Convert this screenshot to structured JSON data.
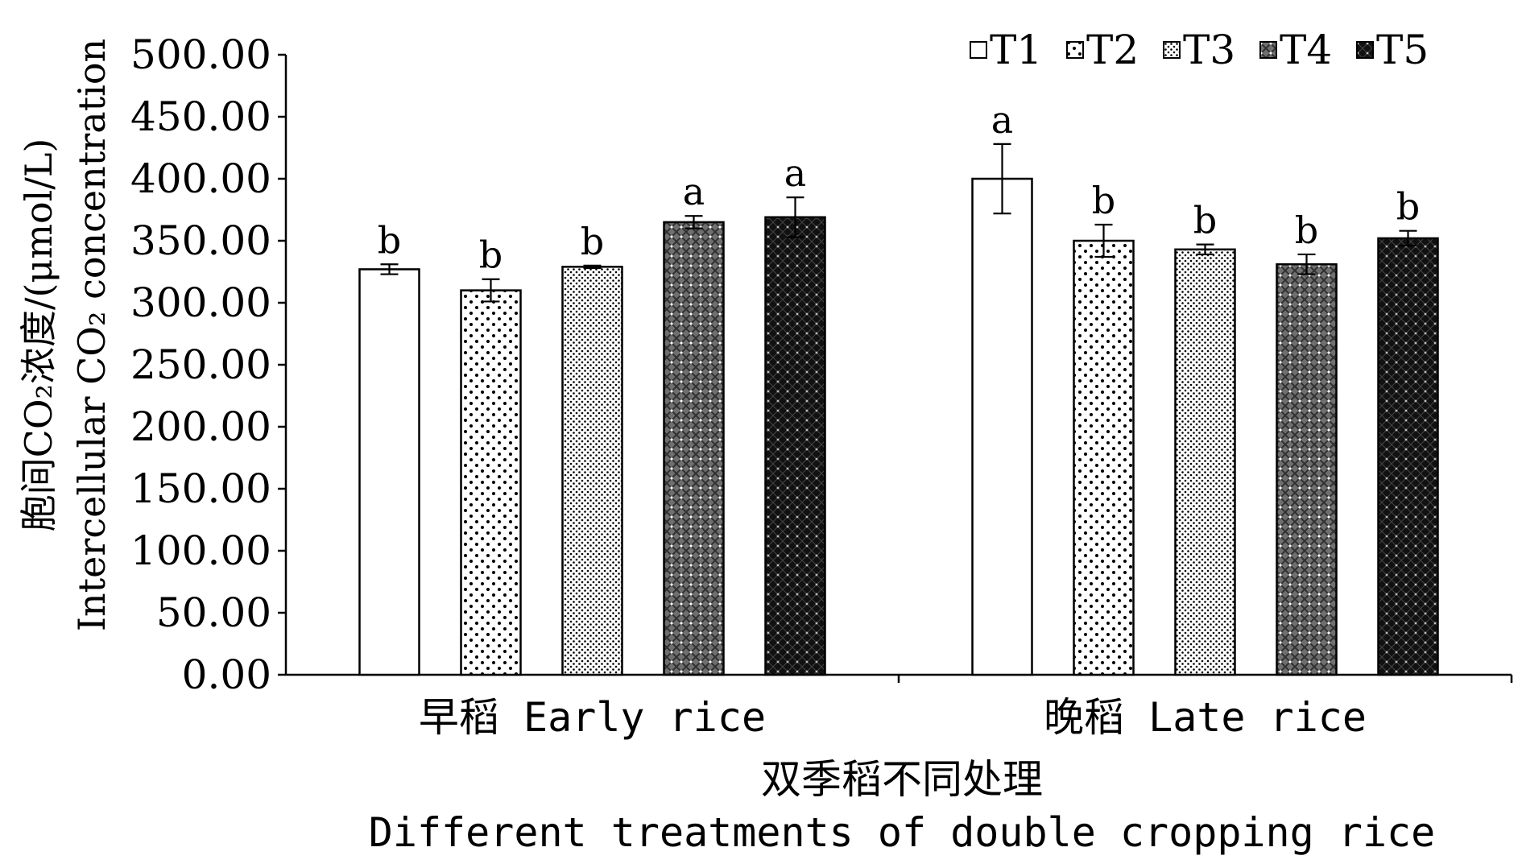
{
  "chart_data": {
    "type": "bar",
    "categories": [
      "早稻 Early rice",
      "晚稻 Late rice"
    ],
    "series": [
      {
        "name": "T1",
        "values": [
          327,
          400
        ],
        "errors": [
          4,
          28
        ],
        "letters": [
          "b",
          "a"
        ],
        "pattern": "solid-white"
      },
      {
        "name": "T2",
        "values": [
          310,
          350
        ],
        "errors": [
          9,
          13
        ],
        "letters": [
          "b",
          "b"
        ],
        "pattern": "sparse-dots"
      },
      {
        "name": "T3",
        "values": [
          329,
          343
        ],
        "errors": [
          1,
          4
        ],
        "letters": [
          "b",
          "b"
        ],
        "pattern": "dense-dots"
      },
      {
        "name": "T4",
        "values": [
          365,
          331
        ],
        "errors": [
          5,
          8
        ],
        "letters": [
          "a",
          "b"
        ],
        "pattern": "grey-mesh"
      },
      {
        "name": "T5",
        "values": [
          369,
          352
        ],
        "errors": [
          16,
          6
        ],
        "letters": [
          "a",
          "b"
        ],
        "pattern": "black-mesh"
      }
    ],
    "ylim": [
      0,
      500
    ],
    "ytick_values": [
      0,
      50,
      100,
      150,
      200,
      250,
      300,
      350,
      400,
      450,
      500
    ],
    "ytick_labels": [
      "0.00",
      "50.00",
      "100.00",
      "150.00",
      "200.00",
      "250.00",
      "300.00",
      "350.00",
      "400.00",
      "450.00",
      "500.00"
    ],
    "ylabel_cn": "胞间CO₂浓度/(μmol/L)",
    "ylabel_en": "Intercellular CO₂ concentration",
    "xlabel_cn": "双季稻不同处理",
    "xlabel_en": "Different treatments of double cropping rice",
    "legend_position": "top-right",
    "grid": false
  }
}
